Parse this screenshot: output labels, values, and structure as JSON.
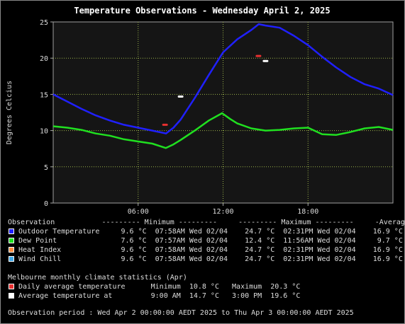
{
  "chart_data": {
    "type": "line",
    "title": "Temperature Observations - Wednesday April 2, 2025",
    "ylabel": "Degrees Celcius",
    "xlabel": "",
    "ylim": [
      0,
      25
    ],
    "xlim": [
      0,
      24
    ],
    "yticks": [
      0,
      5,
      10,
      15,
      20,
      25
    ],
    "xticks": [
      {
        "x": 6,
        "label": "06:00"
      },
      {
        "x": 12,
        "label": "12:00"
      },
      {
        "x": 18,
        "label": "18:00"
      }
    ],
    "grid": true,
    "series": [
      {
        "name": "Outdoor Temperature",
        "color": "#2020ff",
        "x": [
          0,
          1,
          2,
          3,
          4,
          5,
          6,
          7,
          7.97,
          8.5,
          9,
          10,
          11,
          12,
          13,
          14,
          14.52,
          15,
          16,
          17,
          18,
          19,
          20,
          21,
          22,
          23,
          24
        ],
        "y": [
          15.0,
          14.0,
          13.0,
          12.1,
          11.4,
          10.8,
          10.4,
          10.0,
          9.6,
          10.4,
          11.5,
          14.5,
          17.7,
          20.8,
          22.6,
          23.9,
          24.7,
          24.5,
          24.2,
          23.1,
          21.8,
          20.2,
          18.7,
          17.4,
          16.4,
          15.8,
          14.9
        ]
      },
      {
        "name": "Dew Point",
        "color": "#20e020",
        "x": [
          0,
          1,
          2,
          3,
          4,
          5,
          6,
          7,
          7.95,
          8.5,
          9,
          10,
          11,
          11.93,
          12.5,
          13,
          14,
          15,
          16,
          17,
          18,
          19,
          20,
          21,
          22,
          23,
          24
        ],
        "y": [
          10.6,
          10.4,
          10.1,
          9.6,
          9.3,
          8.8,
          8.5,
          8.2,
          7.6,
          8.1,
          8.7,
          10.0,
          11.4,
          12.4,
          11.6,
          11.0,
          10.3,
          10.0,
          10.1,
          10.3,
          10.4,
          9.5,
          9.4,
          9.8,
          10.3,
          10.5,
          10.1
        ]
      }
    ],
    "markers": [
      {
        "name": "Daily average temperature",
        "color": "#e83030",
        "points": [
          {
            "x": 7.9,
            "y": 10.8
          },
          {
            "x": 14.5,
            "y": 20.3
          }
        ]
      },
      {
        "name": "Average temperature at",
        "color": "#ffffff",
        "points": [
          {
            "x": 9.0,
            "y": 14.7
          },
          {
            "x": 15.0,
            "y": 19.6
          }
        ]
      }
    ]
  },
  "legend": {
    "header": "Observation           --------- Minimum ---------     --------- Maximum ---------     -Average-",
    "rows": [
      {
        "color": "#2020ff",
        "text": "Outdoor Temperature     9.6 °C  07:58AM Wed 02/04    24.7 °C  02:31PM Wed 02/04    16.9 °C"
      },
      {
        "color": "#20e020",
        "text": "Dew Point               7.6 °C  07:57AM Wed 02/04    12.4 °C  11:56AM Wed 02/04     9.7 °C"
      },
      {
        "color": "#ff8c40",
        "text": "Heat Index              9.6 °C  07:58AM Wed 02/04    24.7 °C  02:31PM Wed 02/04    16.9 °C"
      },
      {
        "color": "#40a8e8",
        "text": "Wind Chill              9.6 °C  07:58AM Wed 02/04    24.7 °C  02:31PM Wed 02/04    16.9 °C"
      }
    ]
  },
  "climate": {
    "title": "Melbourne monthly climate statistics (Apr)",
    "rows": [
      {
        "color": "#e83030",
        "text": "Daily average temperature      Minimum  10.8 °C   Maximum  20.3 °C"
      },
      {
        "color": "#ffffff",
        "text": "Average temperature at         9:00 AM  14.7 °C   3:00 PM  19.6 °C"
      }
    ]
  },
  "footer": "Observation period : Wed Apr 2 00:00:00 AEDT 2025 to Thu Apr 3 00:00:00 AEDT 2025"
}
